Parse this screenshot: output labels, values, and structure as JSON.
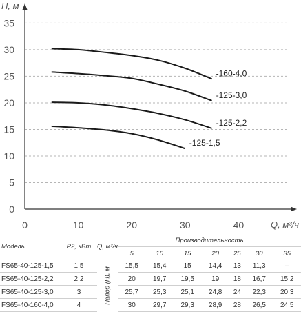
{
  "chart_data": {
    "type": "line",
    "xlabel": "Q, м³/ч",
    "ylabel": "H, м",
    "xlim": [
      0,
      50
    ],
    "ylim": [
      0,
      37
    ],
    "xticks": [
      0,
      10,
      20,
      30,
      40
    ],
    "yticks": [
      0,
      5,
      10,
      15,
      20,
      25,
      30,
      35
    ],
    "grid": "horizontal dashed",
    "series": [
      {
        "name": "-160-4,0",
        "x": [
          5,
          10,
          15,
          20,
          25,
          30,
          35
        ],
        "y": [
          30.2,
          30.0,
          29.5,
          28.9,
          28.0,
          26.5,
          24.5
        ]
      },
      {
        "name": "-125-3,0",
        "x": [
          5,
          10,
          15,
          20,
          25,
          30,
          35
        ],
        "y": [
          25.8,
          25.5,
          25.1,
          24.6,
          23.5,
          22.2,
          20.4
        ]
      },
      {
        "name": "-125-2,2",
        "x": [
          5,
          10,
          15,
          20,
          25,
          30,
          35
        ],
        "y": [
          20.1,
          20.0,
          19.6,
          18.9,
          18.0,
          16.8,
          15.2
        ]
      },
      {
        "name": "-125-1,5",
        "x": [
          5,
          10,
          15,
          20,
          25,
          30
        ],
        "y": [
          15.6,
          15.3,
          14.9,
          14.2,
          13.0,
          11.4
        ]
      }
    ]
  },
  "table": {
    "col_model": "Модель",
    "col_power": "P2, кВт",
    "col_q": "Q, м³/ч",
    "col_perf": "Производительность",
    "col_head": "Напор (Н), м",
    "q_values": [
      "5",
      "10",
      "15",
      "20",
      "25",
      "30",
      "35"
    ],
    "rows": [
      {
        "model": "FS65-40-125-1,5",
        "power": "1,5",
        "values": [
          "15,5",
          "15,4",
          "15",
          "14,4",
          "13",
          "11,3",
          "–"
        ]
      },
      {
        "model": "FS65-40-125-2,2",
        "power": "2,2",
        "values": [
          "20",
          "19,7",
          "19,5",
          "19",
          "18",
          "16,7",
          "15,2"
        ]
      },
      {
        "model": "FS65-40-125-3,0",
        "power": "3",
        "values": [
          "25,7",
          "25,3",
          "25,1",
          "24,8",
          "24",
          "22,3",
          "20,3"
        ]
      },
      {
        "model": "FS65-40-160-4,0",
        "power": "4",
        "values": [
          "30",
          "29,7",
          "29,3",
          "28,9",
          "28",
          "26,5",
          "24,5"
        ]
      }
    ]
  }
}
